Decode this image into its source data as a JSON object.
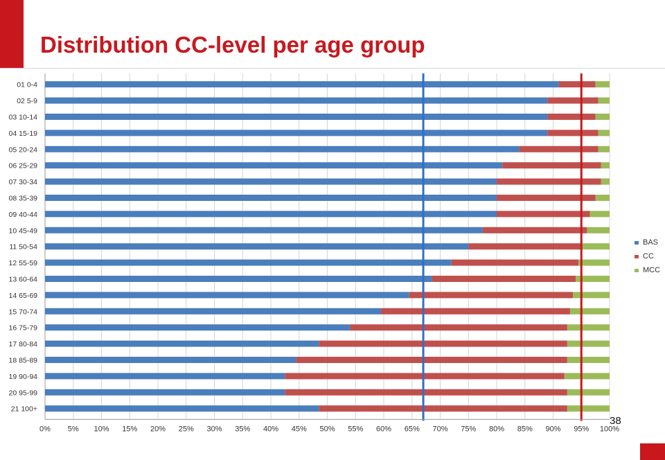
{
  "slide": {
    "title": "Distribution CC-level per age group",
    "page_number": "38"
  },
  "colors": {
    "accent": "#c8181e",
    "BAS": "#4a7ebd",
    "CC": "#c0504d",
    "MCC": "#9bbb59",
    "reference_line_blue": "#2f6fc6",
    "reference_line_red": "#c8181e"
  },
  "chart_data": {
    "type": "bar",
    "orientation": "horizontal",
    "stacked": true,
    "percent": true,
    "categories": [
      "01 0-4",
      "02 5-9",
      "03 10-14",
      "04 15-19",
      "05 20-24",
      "06 25-29",
      "07 30-34",
      "08 35-39",
      "09 40-44",
      "10 45-49",
      "11 50-54",
      "12 55-59",
      "13 60-64",
      "14 65-69",
      "15 70-74",
      "16 75-79",
      "17 80-84",
      "18 85-89",
      "19 90-94",
      "20 95-99",
      "21 100+"
    ],
    "series": [
      {
        "name": "BAS",
        "values": [
          91,
          89,
          89,
          89,
          84,
          81,
          80,
          80,
          80,
          77.5,
          75,
          72,
          68.5,
          64.5,
          59.5,
          54,
          48.5,
          44.5,
          42.5,
          42.5,
          48.5
        ]
      },
      {
        "name": "CC",
        "values": [
          6.5,
          9,
          8.5,
          9,
          14,
          17.5,
          18.5,
          17.5,
          16.5,
          18.5,
          20,
          22.5,
          25.5,
          29,
          33.5,
          38.5,
          44,
          48,
          49.5,
          50,
          44
        ]
      },
      {
        "name": "MCC",
        "values": [
          2.5,
          2,
          2.5,
          2,
          2,
          1.5,
          1.5,
          2.5,
          3.5,
          4,
          5,
          5.5,
          6,
          6.5,
          7,
          7.5,
          7.5,
          7.5,
          8,
          7.5,
          7.5
        ]
      }
    ],
    "xlim": [
      0,
      100
    ],
    "x_ticks": [
      "0%",
      "5%",
      "10%",
      "15%",
      "20%",
      "25%",
      "30%",
      "35%",
      "40%",
      "45%",
      "50%",
      "55%",
      "60%",
      "65%",
      "70%",
      "75%",
      "80%",
      "85%",
      "90%",
      "95%",
      "100%"
    ],
    "reference_lines": [
      {
        "value": 67,
        "color": "blue"
      },
      {
        "value": 95,
        "color": "red"
      }
    ],
    "grid": true,
    "legend_position": "right",
    "title": "",
    "xlabel": "",
    "ylabel": ""
  }
}
